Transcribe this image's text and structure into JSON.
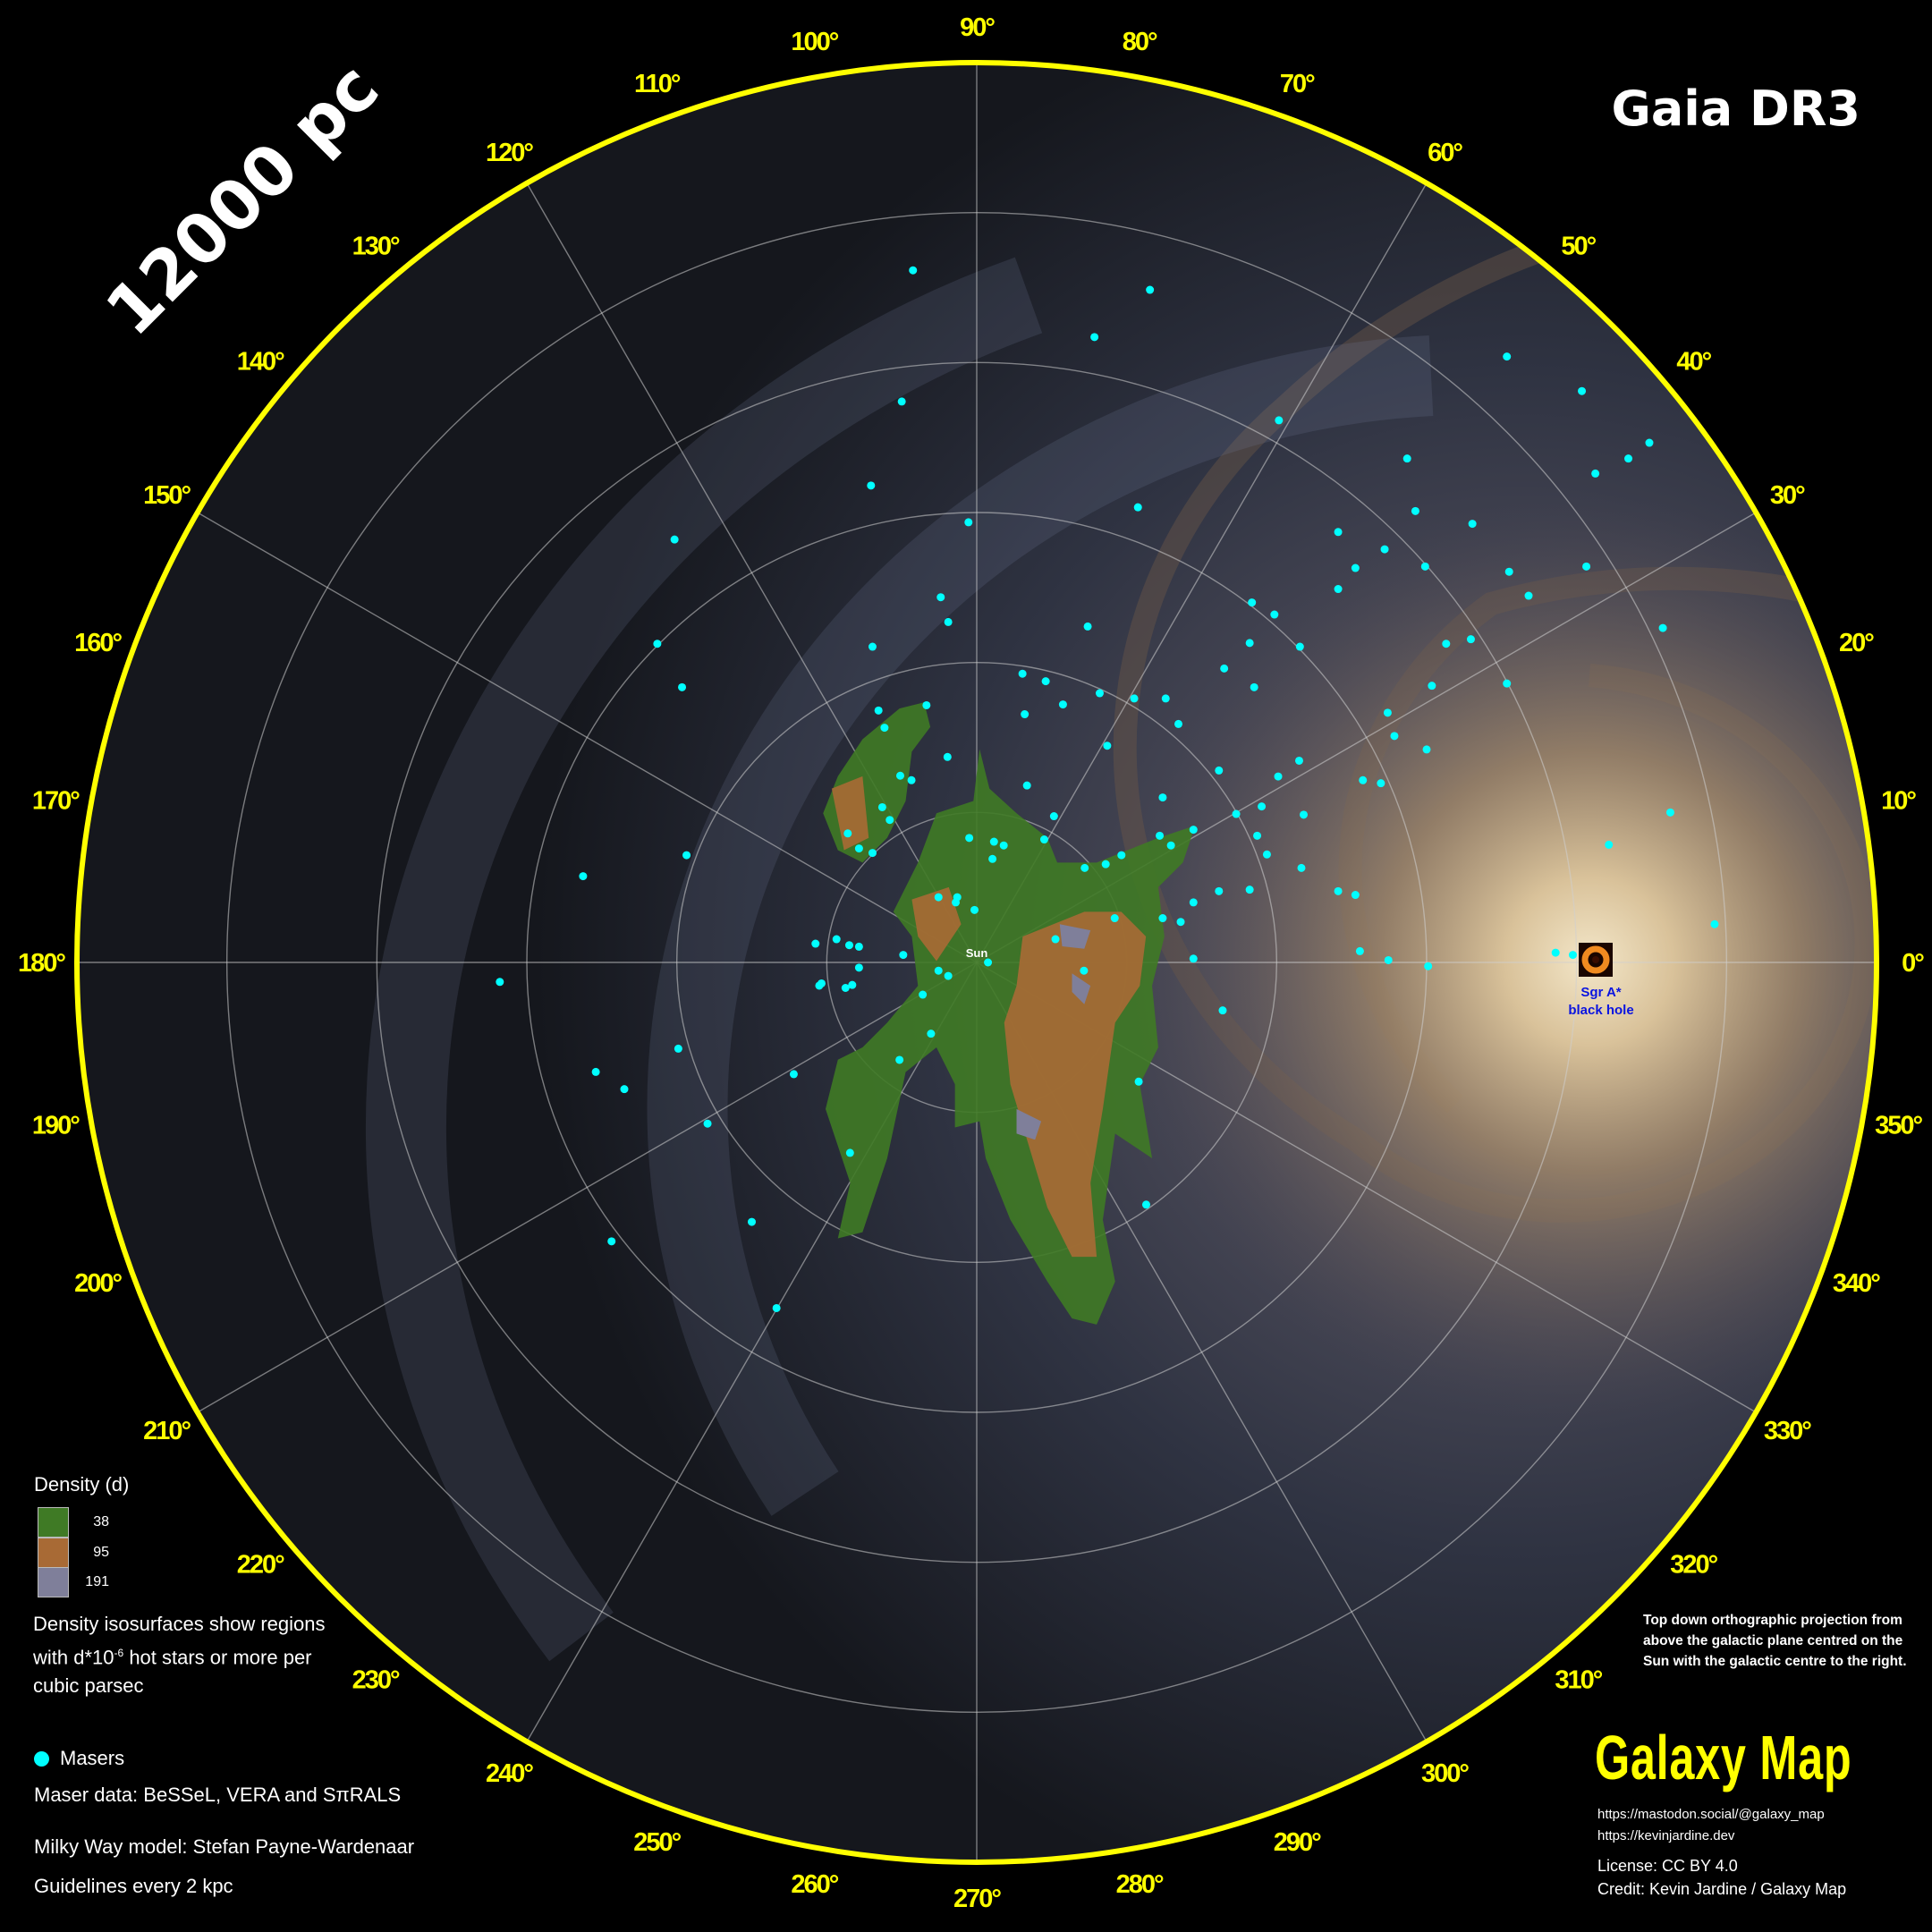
{
  "header": {
    "distance_label": "12000 pc",
    "survey": "Gaia DR3"
  },
  "map": {
    "center_label": "Sun",
    "outer_radius_pc": 12000,
    "ring_spacing_kpc": 2,
    "spoke_spacing_deg": 30,
    "longitude_labels": [
      "0°",
      "10°",
      "20°",
      "30°",
      "40°",
      "50°",
      "60°",
      "70°",
      "80°",
      "90°",
      "100°",
      "110°",
      "120°",
      "130°",
      "140°",
      "150°",
      "160°",
      "170°",
      "180°",
      "190°",
      "200°",
      "210°",
      "220°",
      "230°",
      "240°",
      "250°",
      "260°",
      "270°",
      "280°",
      "290°",
      "300°",
      "310°",
      "320°",
      "330°",
      "340°",
      "350°"
    ],
    "sgr_a": {
      "line1": "Sgr A*",
      "line2": "black hole",
      "distance_kpc": 8.2
    },
    "colors": {
      "border": "#ffff00",
      "maser": "#00ffff",
      "grid": "#cfcfcf",
      "density_38": "#3f7a25",
      "density_95": "#a86a35",
      "density_191": "#7f7f9a",
      "sgr_label": "#0a14e0"
    },
    "masers_kpc": [
      [
        -0.85,
        9.23
      ],
      [
        2.31,
        8.97
      ],
      [
        1.57,
        8.34
      ],
      [
        -1.0,
        7.48
      ],
      [
        4.03,
        7.23
      ],
      [
        7.07,
        8.08
      ],
      [
        8.07,
        7.62
      ],
      [
        8.97,
        6.93
      ],
      [
        8.69,
        6.72
      ],
      [
        8.25,
        6.52
      ],
      [
        5.74,
        6.72
      ],
      [
        6.61,
        5.85
      ],
      [
        5.85,
        6.02
      ],
      [
        4.82,
        5.74
      ],
      [
        2.15,
        6.07
      ],
      [
        -0.11,
        5.87
      ],
      [
        -1.41,
        6.36
      ],
      [
        -4.03,
        5.64
      ],
      [
        -4.26,
        4.25
      ],
      [
        -3.93,
        3.67
      ],
      [
        -1.39,
        4.21
      ],
      [
        -0.48,
        4.87
      ],
      [
        -0.38,
        4.54
      ],
      [
        1.48,
        4.48
      ],
      [
        3.67,
        4.8
      ],
      [
        3.97,
        4.64
      ],
      [
        5.05,
        5.26
      ],
      [
        5.44,
        5.51
      ],
      [
        5.98,
        5.28
      ],
      [
        4.82,
        4.98
      ],
      [
        7.1,
        5.21
      ],
      [
        7.36,
        4.89
      ],
      [
        8.13,
        5.28
      ],
      [
        9.15,
        4.46
      ],
      [
        6.59,
        4.31
      ],
      [
        6.26,
        4.25
      ],
      [
        6.07,
        3.69
      ],
      [
        7.07,
        3.72
      ],
      [
        4.31,
        4.21
      ],
      [
        3.64,
        4.26
      ],
      [
        3.3,
        3.92
      ],
      [
        3.7,
        3.67
      ],
      [
        1.64,
        3.59
      ],
      [
        2.1,
        3.52
      ],
      [
        2.52,
        3.52
      ],
      [
        5.48,
        3.33
      ],
      [
        5.57,
        3.02
      ],
      [
        6.0,
        2.84
      ],
      [
        1.74,
        2.89
      ],
      [
        2.69,
        3.18
      ],
      [
        0.61,
        3.85
      ],
      [
        0.92,
        3.75
      ],
      [
        1.15,
        3.44
      ],
      [
        0.64,
        3.31
      ],
      [
        -1.31,
        3.36
      ],
      [
        -0.67,
        3.43
      ],
      [
        -1.23,
        3.13
      ],
      [
        -0.39,
        2.74
      ],
      [
        3.23,
        2.56
      ],
      [
        4.02,
        2.48
      ],
      [
        4.3,
        2.69
      ],
      [
        5.15,
        2.43
      ],
      [
        5.39,
        2.39
      ],
      [
        4.36,
        1.97
      ],
      [
        3.8,
        2.08
      ],
      [
        3.46,
        1.98
      ],
      [
        2.48,
        2.2
      ],
      [
        9.25,
        2.0
      ],
      [
        8.43,
        1.57
      ],
      [
        1.03,
        1.95
      ],
      [
        0.9,
        1.64
      ],
      [
        0.36,
        1.56
      ],
      [
        0.23,
        1.61
      ],
      [
        0.21,
        1.38
      ],
      [
        -0.1,
        1.66
      ],
      [
        0.67,
        2.36
      ],
      [
        2.44,
        1.69
      ],
      [
        2.89,
        1.77
      ],
      [
        3.74,
        1.69
      ],
      [
        3.87,
        1.44
      ],
      [
        4.33,
        1.26
      ],
      [
        4.82,
        0.95
      ],
      [
        5.05,
        0.9
      ],
      [
        3.64,
        0.97
      ],
      [
        3.23,
        0.95
      ],
      [
        2.89,
        0.8
      ],
      [
        2.72,
        0.54
      ],
      [
        2.48,
        0.59
      ],
      [
        1.84,
        0.59
      ],
      [
        1.44,
        1.26
      ],
      [
        1.93,
        1.43
      ],
      [
        1.72,
        1.31
      ],
      [
        2.59,
        1.56
      ],
      [
        9.84,
        0.51
      ],
      [
        7.72,
        0.13
      ],
      [
        7.95,
        0.1
      ],
      [
        5.11,
        0.15
      ],
      [
        5.49,
        0.03
      ],
      [
        6.02,
        -0.05
      ],
      [
        2.89,
        0.05
      ],
      [
        3.28,
        -0.64
      ],
      [
        1.05,
        0.31
      ],
      [
        1.43,
        -0.11
      ],
      [
        2.16,
        -1.59
      ],
      [
        2.26,
        -3.23
      ],
      [
        -0.28,
        0.8
      ],
      [
        -0.26,
        0.87
      ],
      [
        -0.51,
        0.87
      ],
      [
        -0.03,
        0.7
      ],
      [
        -0.87,
        2.43
      ],
      [
        -1.02,
        2.49
      ],
      [
        -1.26,
        2.07
      ],
      [
        -1.16,
        1.9
      ],
      [
        -1.39,
        1.46
      ],
      [
        -1.57,
        1.52
      ],
      [
        -1.72,
        1.72
      ],
      [
        -3.87,
        1.43
      ],
      [
        -5.25,
        1.15
      ],
      [
        -6.36,
        -0.26
      ],
      [
        -2.15,
        0.25
      ],
      [
        -1.87,
        0.31
      ],
      [
        -1.7,
        0.23
      ],
      [
        -1.57,
        0.21
      ],
      [
        -2.07,
        -0.28
      ],
      [
        -2.1,
        -0.31
      ],
      [
        -1.75,
        -0.34
      ],
      [
        -1.66,
        -0.3
      ],
      [
        -1.57,
        -0.07
      ],
      [
        -0.98,
        0.1
      ],
      [
        -0.72,
        -0.43
      ],
      [
        -0.51,
        -0.11
      ],
      [
        -0.38,
        -0.18
      ],
      [
        -0.61,
        -0.95
      ],
      [
        -1.03,
        -1.3
      ],
      [
        -2.44,
        -1.49
      ],
      [
        -3.98,
        -1.15
      ],
      [
        -5.08,
        -1.46
      ],
      [
        -4.7,
        -1.69
      ],
      [
        -3.59,
        -2.15
      ],
      [
        -1.69,
        -2.54
      ],
      [
        -3.0,
        -3.46
      ],
      [
        -4.87,
        -3.72
      ],
      [
        -2.67,
        -4.61
      ],
      [
        0.15,
        0.0
      ]
    ]
  },
  "legend": {
    "density_title": "Density (d)",
    "levels": [
      {
        "value": "38"
      },
      {
        "value": "95"
      },
      {
        "value": "191"
      }
    ],
    "description_pre": "Density isosurfaces show regions with d*10",
    "description_exp": "-6",
    "description_post": "hot stars or more per cubic parsec",
    "masers_label": "Masers",
    "maser_source": "Maser data: BeSSeL, VERA and SπRALS",
    "model_credit": "Milky Way model: Stefan Payne-Wardenaar",
    "guidelines": "Guidelines every 2 kpc"
  },
  "footer": {
    "projection_note": "Top down orthographic projection from above the galactic plane centred on the Sun with the galactic centre to the right.",
    "brand": "Galaxy Map",
    "link_mastodon": "https://mastodon.social/@galaxy_map",
    "link_site": "https://kevinjardine.dev",
    "license": "License: CC BY 4.0",
    "credit": "Credit: Kevin Jardine / Galaxy Map"
  }
}
